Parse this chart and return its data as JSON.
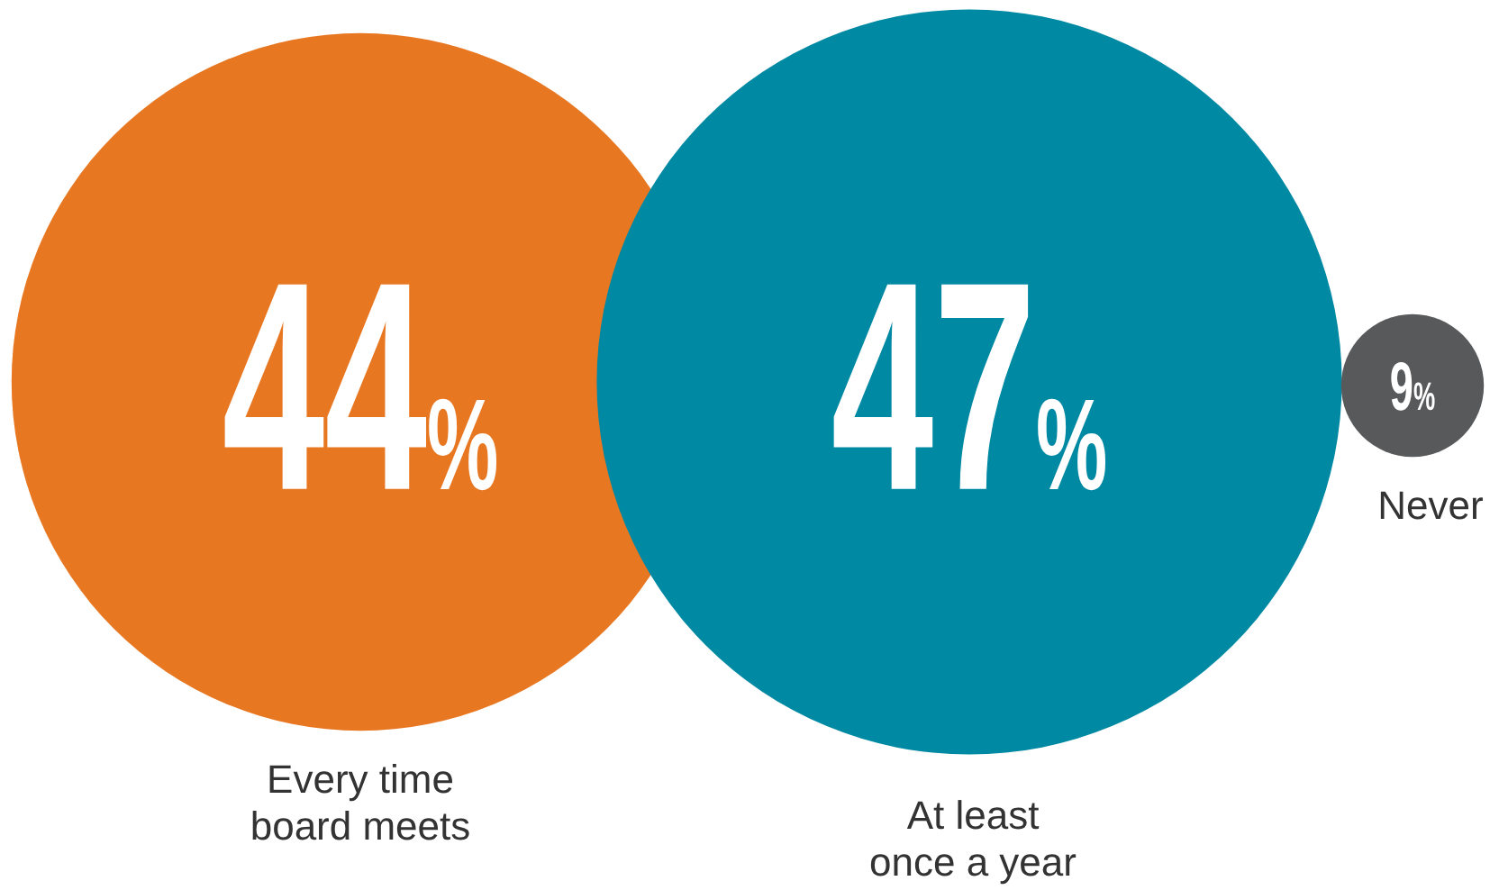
{
  "chart_data": {
    "type": "other",
    "categories": [
      "Every time board meets",
      "At least once a year",
      "Never"
    ],
    "values": [
      44,
      47,
      9
    ],
    "value_labels": [
      "44%",
      "47%",
      "9%"
    ],
    "colors": [
      "#e87722",
      "#0089a3",
      "#58595b"
    ]
  }
}
